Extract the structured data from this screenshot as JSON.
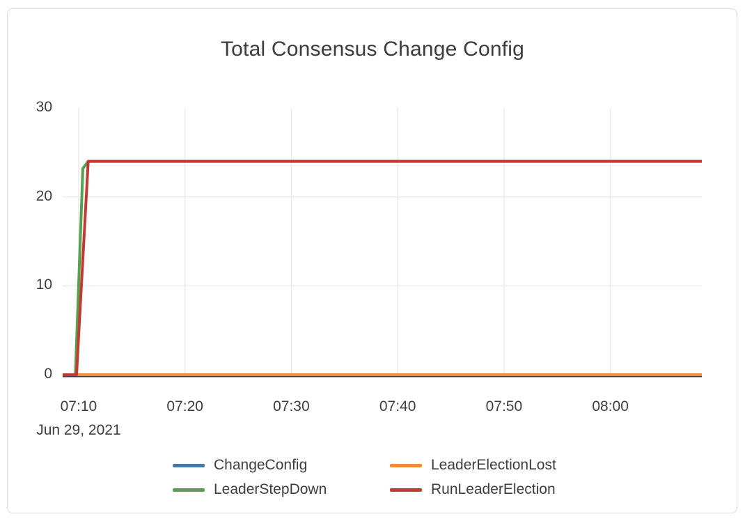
{
  "chart_data": {
    "type": "line",
    "title": "Total Consensus Change Config",
    "x_axis": {
      "date_label": "Jun 29, 2021",
      "domain_minutes": [
        8.5,
        68.6
      ],
      "tick_minutes": [
        10,
        20,
        30,
        40,
        50,
        60
      ],
      "tick_labels": [
        "07:10",
        "07:20",
        "07:30",
        "07:40",
        "07:50",
        "08:00"
      ]
    },
    "y_axis": {
      "range": [
        0,
        30
      ],
      "tick_values": [
        0,
        10,
        20,
        30
      ],
      "grid_values": [
        10,
        20
      ]
    },
    "grid": true,
    "legend_position": "bottom",
    "colors": {
      "grid_line": "#ebebeb",
      "zero_line": "#3f3f3f",
      "text": "#3d3d3d"
    },
    "series": [
      {
        "name": "ChangeConfig",
        "color": "#4878a8",
        "points": [
          [
            8.5,
            0
          ],
          [
            68.6,
            0
          ]
        ]
      },
      {
        "name": "LeaderElectionLost",
        "color": "#ee8a38",
        "points": [
          [
            8.5,
            0
          ],
          [
            68.6,
            0
          ]
        ]
      },
      {
        "name": "LeaderStepDown",
        "color": "#57a14e",
        "points": [
          [
            8.5,
            0
          ],
          [
            9.7,
            0
          ],
          [
            10.4,
            23.2
          ],
          [
            10.9,
            24
          ],
          [
            68.6,
            24
          ]
        ]
      },
      {
        "name": "RunLeaderElection",
        "color": "#c23b33",
        "points": [
          [
            8.5,
            0
          ],
          [
            9.8,
            0
          ],
          [
            10.9,
            24
          ],
          [
            68.6,
            24
          ]
        ]
      }
    ],
    "legend": [
      {
        "label": "ChangeConfig",
        "color": "#4878a8"
      },
      {
        "label": "LeaderElectionLost",
        "color": "#ee8a38"
      },
      {
        "label": "LeaderStepDown",
        "color": "#57a14e"
      },
      {
        "label": "RunLeaderElection",
        "color": "#c23b33"
      }
    ]
  }
}
